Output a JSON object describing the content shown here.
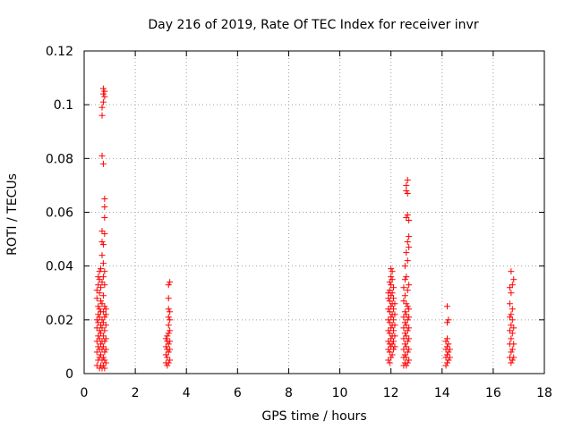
{
  "chart_data": {
    "type": "scatter",
    "title": "Day 216 of 2019, Rate Of TEC Index for receiver invr",
    "xlabel": "GPS time / hours",
    "ylabel": "ROTI / TECUs",
    "xlim": [
      0,
      18
    ],
    "ylim": [
      0,
      0.12
    ],
    "xticks": [
      0,
      2,
      4,
      6,
      8,
      10,
      12,
      14,
      16,
      18
    ],
    "xtick_labels": [
      "0",
      "2",
      "4",
      "6",
      "8",
      "10",
      "12",
      "14",
      "16",
      "18"
    ],
    "yticks": [
      0,
      0.02,
      0.04,
      0.06,
      0.08,
      0.1,
      0.12
    ],
    "ytick_labels": [
      "0",
      "0.02",
      "0.04",
      "0.06",
      "0.08",
      "0.1",
      "0.12"
    ],
    "grid": true,
    "marker": "+",
    "color": "#ff0000",
    "series": [
      {
        "name": "ROTI",
        "points": [
          [
            0.5,
            0.003
          ],
          [
            0.5,
            0.008
          ],
          [
            0.5,
            0.012
          ],
          [
            0.5,
            0.017
          ],
          [
            0.5,
            0.02
          ],
          [
            0.5,
            0.028
          ],
          [
            0.5,
            0.031
          ],
          [
            0.55,
            0.005
          ],
          [
            0.55,
            0.01
          ],
          [
            0.55,
            0.014
          ],
          [
            0.55,
            0.019
          ],
          [
            0.55,
            0.022
          ],
          [
            0.55,
            0.025
          ],
          [
            0.55,
            0.033
          ],
          [
            0.55,
            0.036
          ],
          [
            0.6,
            0.002
          ],
          [
            0.6,
            0.006
          ],
          [
            0.6,
            0.009
          ],
          [
            0.6,
            0.013
          ],
          [
            0.6,
            0.016
          ],
          [
            0.6,
            0.021
          ],
          [
            0.6,
            0.024
          ],
          [
            0.6,
            0.03
          ],
          [
            0.6,
            0.035
          ],
          [
            0.6,
            0.038
          ],
          [
            0.65,
            0.003
          ],
          [
            0.65,
            0.007
          ],
          [
            0.65,
            0.011
          ],
          [
            0.65,
            0.015
          ],
          [
            0.65,
            0.018
          ],
          [
            0.65,
            0.023
          ],
          [
            0.65,
            0.027
          ],
          [
            0.65,
            0.032
          ],
          [
            0.65,
            0.039
          ],
          [
            0.7,
            0.002
          ],
          [
            0.7,
            0.005
          ],
          [
            0.7,
            0.009
          ],
          [
            0.7,
            0.012
          ],
          [
            0.7,
            0.017
          ],
          [
            0.7,
            0.02
          ],
          [
            0.7,
            0.026
          ],
          [
            0.7,
            0.034
          ],
          [
            0.7,
            0.044
          ],
          [
            0.7,
            0.049
          ],
          [
            0.7,
            0.053
          ],
          [
            0.7,
            0.081
          ],
          [
            0.7,
            0.096
          ],
          [
            0.7,
            0.099
          ],
          [
            0.75,
            0.003
          ],
          [
            0.75,
            0.006
          ],
          [
            0.75,
            0.01
          ],
          [
            0.75,
            0.014
          ],
          [
            0.75,
            0.019
          ],
          [
            0.75,
            0.023
          ],
          [
            0.75,
            0.029
          ],
          [
            0.75,
            0.036
          ],
          [
            0.75,
            0.041
          ],
          [
            0.75,
            0.048
          ],
          [
            0.75,
            0.078
          ],
          [
            0.75,
            0.101
          ],
          [
            0.75,
            0.104
          ],
          [
            0.75,
            0.106
          ],
          [
            0.8,
            0.002
          ],
          [
            0.8,
            0.005
          ],
          [
            0.8,
            0.008
          ],
          [
            0.8,
            0.012
          ],
          [
            0.8,
            0.016
          ],
          [
            0.8,
            0.021
          ],
          [
            0.8,
            0.025
          ],
          [
            0.8,
            0.033
          ],
          [
            0.8,
            0.038
          ],
          [
            0.8,
            0.052
          ],
          [
            0.8,
            0.058
          ],
          [
            0.8,
            0.062
          ],
          [
            0.8,
            0.065
          ],
          [
            0.8,
            0.103
          ],
          [
            0.8,
            0.105
          ],
          [
            0.85,
            0.004
          ],
          [
            0.85,
            0.009
          ],
          [
            0.85,
            0.013
          ],
          [
            0.85,
            0.018
          ],
          [
            0.85,
            0.022
          ],
          [
            0.85,
            0.024
          ],
          [
            3.2,
            0.004
          ],
          [
            3.2,
            0.007
          ],
          [
            3.2,
            0.01
          ],
          [
            3.2,
            0.013
          ],
          [
            3.25,
            0.003
          ],
          [
            3.25,
            0.006
          ],
          [
            3.25,
            0.009
          ],
          [
            3.25,
            0.012
          ],
          [
            3.25,
            0.014
          ],
          [
            3.3,
            0.004
          ],
          [
            3.3,
            0.008
          ],
          [
            3.3,
            0.011
          ],
          [
            3.3,
            0.015
          ],
          [
            3.3,
            0.018
          ],
          [
            3.3,
            0.021
          ],
          [
            3.3,
            0.024
          ],
          [
            3.3,
            0.028
          ],
          [
            3.3,
            0.033
          ],
          [
            3.35,
            0.005
          ],
          [
            3.35,
            0.009
          ],
          [
            3.35,
            0.012
          ],
          [
            3.35,
            0.016
          ],
          [
            3.35,
            0.02
          ],
          [
            3.35,
            0.023
          ],
          [
            3.35,
            0.034
          ],
          [
            11.9,
            0.005
          ],
          [
            11.9,
            0.009
          ],
          [
            11.9,
            0.012
          ],
          [
            11.9,
            0.016
          ],
          [
            11.9,
            0.02
          ],
          [
            11.9,
            0.024
          ],
          [
            11.9,
            0.028
          ],
          [
            11.9,
            0.03
          ],
          [
            11.95,
            0.004
          ],
          [
            11.95,
            0.008
          ],
          [
            11.95,
            0.011
          ],
          [
            11.95,
            0.015
          ],
          [
            11.95,
            0.019
          ],
          [
            11.95,
            0.023
          ],
          [
            11.95,
            0.027
          ],
          [
            11.95,
            0.031
          ],
          [
            11.95,
            0.034
          ],
          [
            12.0,
            0.006
          ],
          [
            12.0,
            0.01
          ],
          [
            12.0,
            0.013
          ],
          [
            12.0,
            0.017
          ],
          [
            12.0,
            0.021
          ],
          [
            12.0,
            0.025
          ],
          [
            12.0,
            0.029
          ],
          [
            12.0,
            0.033
          ],
          [
            12.0,
            0.036
          ],
          [
            12.0,
            0.039
          ],
          [
            12.05,
            0.007
          ],
          [
            12.05,
            0.011
          ],
          [
            12.05,
            0.014
          ],
          [
            12.05,
            0.018
          ],
          [
            12.05,
            0.022
          ],
          [
            12.05,
            0.026
          ],
          [
            12.05,
            0.03
          ],
          [
            12.05,
            0.035
          ],
          [
            12.05,
            0.038
          ],
          [
            12.1,
            0.009
          ],
          [
            12.1,
            0.012
          ],
          [
            12.1,
            0.016
          ],
          [
            12.1,
            0.02
          ],
          [
            12.1,
            0.024
          ],
          [
            12.1,
            0.028
          ],
          [
            12.1,
            0.032
          ],
          [
            12.15,
            0.01
          ],
          [
            12.15,
            0.014
          ],
          [
            12.15,
            0.018
          ],
          [
            12.15,
            0.022
          ],
          [
            12.15,
            0.026
          ],
          [
            12.5,
            0.003
          ],
          [
            12.5,
            0.006
          ],
          [
            12.5,
            0.009
          ],
          [
            12.5,
            0.013
          ],
          [
            12.5,
            0.017
          ],
          [
            12.5,
            0.021
          ],
          [
            12.5,
            0.027
          ],
          [
            12.5,
            0.032
          ],
          [
            12.55,
            0.004
          ],
          [
            12.55,
            0.007
          ],
          [
            12.55,
            0.011
          ],
          [
            12.55,
            0.015
          ],
          [
            12.55,
            0.019
          ],
          [
            12.55,
            0.023
          ],
          [
            12.55,
            0.029
          ],
          [
            12.55,
            0.035
          ],
          [
            12.55,
            0.04
          ],
          [
            12.6,
            0.003
          ],
          [
            12.6,
            0.006
          ],
          [
            12.6,
            0.01
          ],
          [
            12.6,
            0.014
          ],
          [
            12.6,
            0.018
          ],
          [
            12.6,
            0.022
          ],
          [
            12.6,
            0.026
          ],
          [
            12.6,
            0.036
          ],
          [
            12.6,
            0.045
          ],
          [
            12.6,
            0.058
          ],
          [
            12.6,
            0.068
          ],
          [
            12.6,
            0.07
          ],
          [
            12.65,
            0.004
          ],
          [
            12.65,
            0.008
          ],
          [
            12.65,
            0.012
          ],
          [
            12.65,
            0.016
          ],
          [
            12.65,
            0.02
          ],
          [
            12.65,
            0.025
          ],
          [
            12.65,
            0.031
          ],
          [
            12.65,
            0.042
          ],
          [
            12.65,
            0.049
          ],
          [
            12.65,
            0.059
          ],
          [
            12.65,
            0.067
          ],
          [
            12.65,
            0.072
          ],
          [
            12.7,
            0.005
          ],
          [
            12.7,
            0.009
          ],
          [
            12.7,
            0.013
          ],
          [
            12.7,
            0.017
          ],
          [
            12.7,
            0.021
          ],
          [
            12.7,
            0.024
          ],
          [
            12.7,
            0.033
          ],
          [
            12.7,
            0.047
          ],
          [
            12.7,
            0.051
          ],
          [
            12.7,
            0.057
          ],
          [
            14.15,
            0.003
          ],
          [
            14.15,
            0.006
          ],
          [
            14.15,
            0.009
          ],
          [
            14.15,
            0.012
          ],
          [
            14.2,
            0.004
          ],
          [
            14.2,
            0.007
          ],
          [
            14.2,
            0.01
          ],
          [
            14.2,
            0.013
          ],
          [
            14.2,
            0.019
          ],
          [
            14.2,
            0.025
          ],
          [
            14.25,
            0.005
          ],
          [
            14.25,
            0.008
          ],
          [
            14.25,
            0.011
          ],
          [
            14.25,
            0.02
          ],
          [
            14.3,
            0.006
          ],
          [
            14.3,
            0.009
          ],
          [
            16.65,
            0.006
          ],
          [
            16.65,
            0.011
          ],
          [
            16.65,
            0.016
          ],
          [
            16.65,
            0.021
          ],
          [
            16.65,
            0.026
          ],
          [
            16.65,
            0.032
          ],
          [
            16.7,
            0.004
          ],
          [
            16.7,
            0.008
          ],
          [
            16.7,
            0.013
          ],
          [
            16.7,
            0.018
          ],
          [
            16.7,
            0.022
          ],
          [
            16.7,
            0.03
          ],
          [
            16.7,
            0.038
          ],
          [
            16.75,
            0.005
          ],
          [
            16.75,
            0.009
          ],
          [
            16.75,
            0.015
          ],
          [
            16.75,
            0.02
          ],
          [
            16.75,
            0.024
          ],
          [
            16.75,
            0.033
          ],
          [
            16.8,
            0.006
          ],
          [
            16.8,
            0.011
          ],
          [
            16.8,
            0.017
          ],
          [
            16.8,
            0.035
          ]
        ]
      }
    ]
  }
}
